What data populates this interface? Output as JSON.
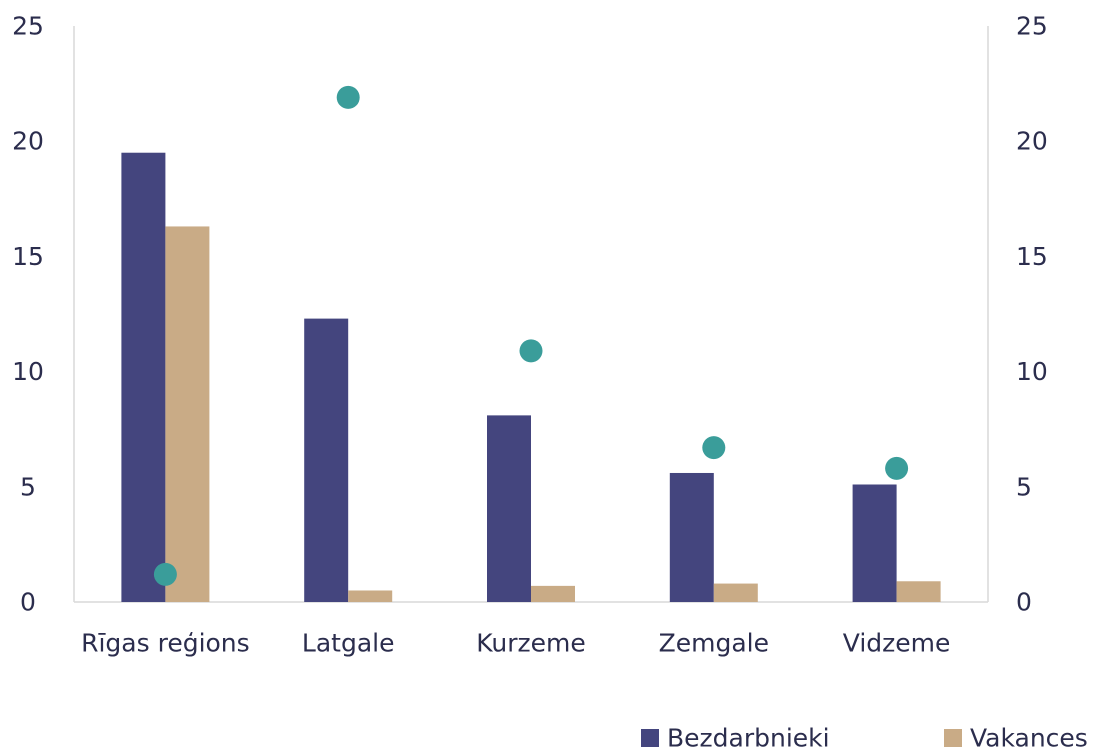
{
  "chart_data": {
    "type": "bar",
    "categories": [
      "Rīgas reģions",
      "Latgale",
      "Kurzeme",
      "Zemgale",
      "Vidzeme"
    ],
    "series": [
      {
        "name": "Bezdarbnieki",
        "kind": "bar",
        "axis": "left",
        "color": "#44457e",
        "values": [
          19.5,
          12.3,
          8.1,
          5.6,
          5.1
        ]
      },
      {
        "name": "Vakances",
        "kind": "bar",
        "axis": "left",
        "color": "#c9ab86",
        "values": [
          16.3,
          0.5,
          0.7,
          0.8,
          0.9
        ]
      },
      {
        "name": "",
        "kind": "scatter",
        "axis": "right",
        "color": "#3a9d9a",
        "values": [
          1.2,
          21.9,
          10.9,
          6.7,
          5.8
        ]
      }
    ],
    "y_left": {
      "ticks": [
        "0",
        "5",
        "10",
        "15",
        "20",
        "25"
      ],
      "ylim": [
        0,
        25
      ]
    },
    "y_right": {
      "ticks": [
        "0",
        "5",
        "10",
        "15",
        "20",
        "25"
      ],
      "ylim": [
        0,
        25
      ]
    },
    "grid": false,
    "legend": {
      "placement": "bottom-right",
      "entries": [
        "Bezdarbnieki",
        "Vakances"
      ]
    }
  }
}
